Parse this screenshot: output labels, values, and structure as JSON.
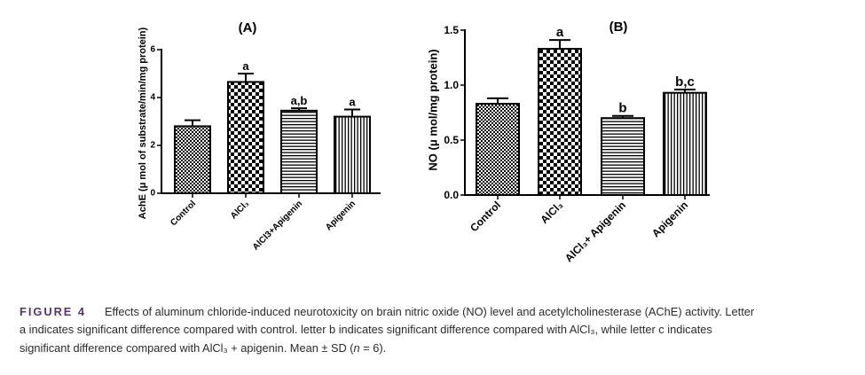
{
  "figure": {
    "colors": {
      "caption_label": "#5b2d86",
      "caption_text": "#2b2b2b",
      "chart_ink": "#000000",
      "background": "#ffffff"
    },
    "caption": {
      "label": "FIGURE 4",
      "line1": "Effects of aluminum chloride-induced neurotoxicity on brain nitric oxide (NO) level and acetylcholinesterase (AChE) activity. Letter",
      "line2": "a indicates significant difference compared with control. letter b indicates significant difference compared with AlCl₃, while letter c indicates",
      "line3_start": "significant difference compared with AlCl₃ + apigenin. Mean ± SD (",
      "line3_italic": "n",
      "line3_end": " = 6)."
    }
  },
  "chart_data": [
    {
      "type": "bar",
      "title": "(A)",
      "xlabel": "",
      "ylabel": "AchE (μ mol of substrate/min/mg protein)",
      "categories": [
        "Control",
        "AlCl₃",
        "AlCl3+Apigenin",
        "Apigenin"
      ],
      "values": [
        2.8,
        4.65,
        3.45,
        3.2
      ],
      "errors": [
        0.25,
        0.35,
        0.1,
        0.3
      ],
      "annotations": [
        "",
        "a",
        "a,b",
        "a"
      ],
      "ylim": [
        0,
        6
      ],
      "yticks": [
        0,
        2,
        4,
        6
      ],
      "ytick_labels": [
        "0",
        "2",
        "4",
        "6"
      ],
      "fill_patterns": [
        "fine-checker",
        "checker",
        "horizontal-lines",
        "vertical-lines"
      ],
      "grid": false
    },
    {
      "type": "bar",
      "title": "(B)",
      "xlabel": "",
      "ylabel": "NO (μ mol/mg protein)",
      "categories": [
        "Control",
        "AlCl₃",
        "AlCl₃+ Apigenin",
        "Apigenin"
      ],
      "values": [
        0.83,
        1.33,
        0.7,
        0.93
      ],
      "errors": [
        0.05,
        0.08,
        0.02,
        0.03
      ],
      "annotations": [
        "",
        "a",
        "b",
        "b,c"
      ],
      "ylim": [
        0,
        1.5
      ],
      "yticks": [
        0,
        0.5,
        1.0,
        1.5
      ],
      "ytick_labels": [
        "0.0",
        "0.5",
        "1.0",
        "1.5"
      ],
      "fill_patterns": [
        "fine-checker",
        "checker",
        "horizontal-lines",
        "vertical-lines"
      ],
      "grid": false
    }
  ]
}
